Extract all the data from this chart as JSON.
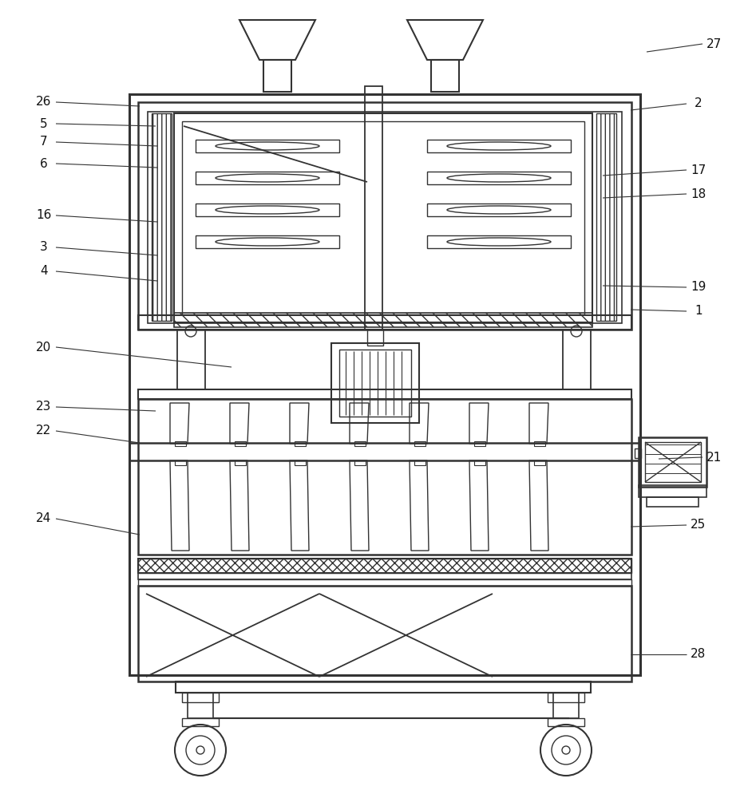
{
  "line_color": "#333333",
  "label_color": "#111111",
  "label_data": [
    [
      "26",
      55,
      128,
      175,
      133
    ],
    [
      "5",
      55,
      155,
      195,
      158
    ],
    [
      "7",
      55,
      178,
      197,
      183
    ],
    [
      "6",
      55,
      205,
      197,
      210
    ],
    [
      "16",
      55,
      270,
      197,
      278
    ],
    [
      "3",
      55,
      310,
      197,
      320
    ],
    [
      "4",
      55,
      340,
      197,
      352
    ],
    [
      "20",
      55,
      435,
      290,
      460
    ],
    [
      "23",
      55,
      510,
      195,
      515
    ],
    [
      "22",
      55,
      540,
      175,
      555
    ],
    [
      "24",
      55,
      650,
      175,
      670
    ],
    [
      "27",
      895,
      55,
      810,
      65
    ],
    [
      "2",
      875,
      130,
      790,
      138
    ],
    [
      "17",
      875,
      213,
      755,
      220
    ],
    [
      "18",
      875,
      243,
      755,
      248
    ],
    [
      "1",
      875,
      390,
      790,
      388
    ],
    [
      "19",
      875,
      360,
      755,
      358
    ],
    [
      "21",
      895,
      573,
      825,
      575
    ],
    [
      "25",
      875,
      658,
      790,
      660
    ],
    [
      "28",
      875,
      820,
      790,
      820
    ]
  ]
}
